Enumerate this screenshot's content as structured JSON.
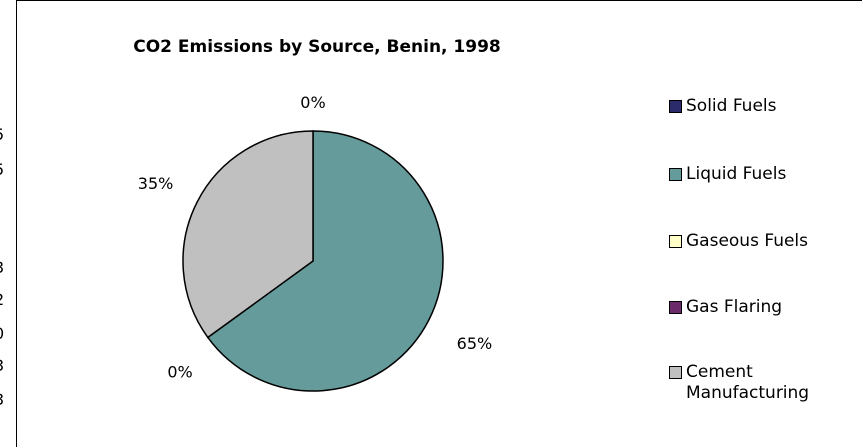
{
  "left_fragments": [
    "5",
    "5",
    "3",
    "2",
    "0",
    "3",
    "3"
  ],
  "chart_data": {
    "type": "pie",
    "title": "CO2 Emissions by Source, Benin, 1998",
    "categories": [
      "Solid Fuels",
      "Liquid Fuels",
      "Gaseous Fuels",
      "Gas Flaring",
      "Cement Manufacturing"
    ],
    "values": [
      0,
      65,
      0,
      0,
      35
    ],
    "labels": [
      "0%",
      "65%",
      "",
      "0%",
      "35%"
    ],
    "colors": [
      "#2b2a6b",
      "#659c9b",
      "#fffdc8",
      "#6b2b6b",
      "#c0c0c0"
    ],
    "legend": "right"
  }
}
